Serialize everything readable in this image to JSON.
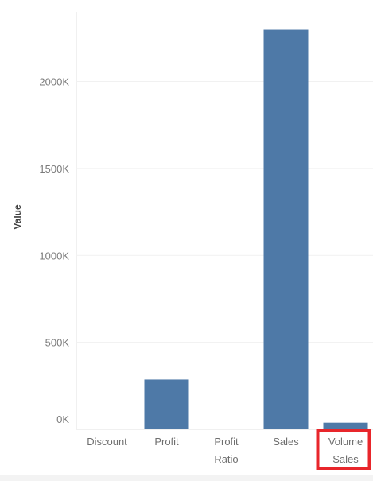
{
  "chart_data": {
    "type": "bar",
    "ylabel": "Value",
    "ylim": [
      0,
      2400000
    ],
    "y_ticks": [
      {
        "value": 0,
        "label": "0K"
      },
      {
        "value": 500000,
        "label": "500K"
      },
      {
        "value": 1000000,
        "label": "1000K"
      },
      {
        "value": 1500000,
        "label": "1500K"
      },
      {
        "value": 2000000,
        "label": "2000K"
      }
    ],
    "categories": [
      {
        "name": "Discount",
        "lines": [
          "Discount"
        ]
      },
      {
        "name": "Profit",
        "lines": [
          "Profit"
        ]
      },
      {
        "name": "Profit Ratio",
        "lines": [
          "Profit",
          "Ratio"
        ]
      },
      {
        "name": "Sales",
        "lines": [
          "Sales"
        ]
      },
      {
        "name": "Volume Sales",
        "lines": [
          "Volume",
          "Sales"
        ]
      }
    ],
    "values": [
      0,
      286000,
      0,
      2297000,
      38000
    ],
    "bar_color": "#4e79a7",
    "grid": true,
    "highlight_category": "Volume Sales",
    "highlight_color": "#e8262b"
  }
}
